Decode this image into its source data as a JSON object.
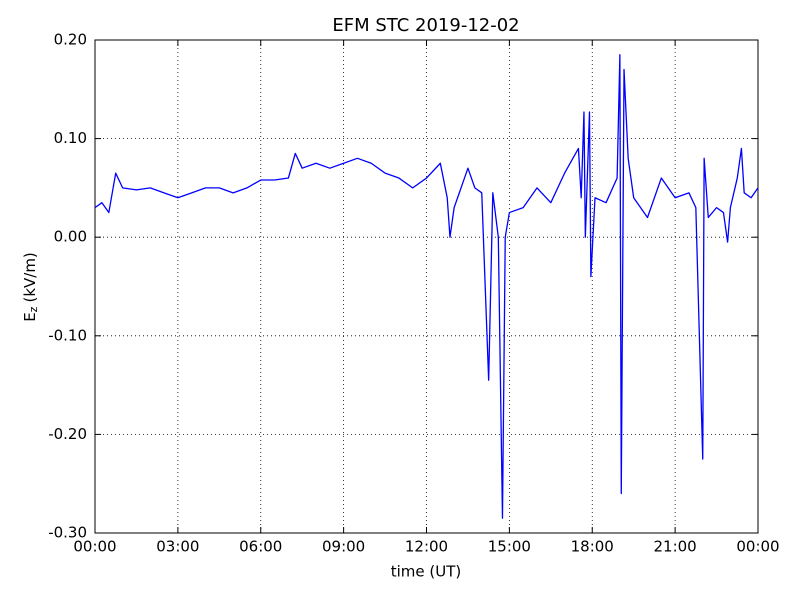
{
  "chart_data": {
    "type": "line",
    "title": "EFM STC    2019-12-02",
    "xlabel": "time (UT)",
    "ylabel": {
      "main": "E",
      "sub": "z",
      "unit": "(kV/m)"
    },
    "color": "#0000ff",
    "grid": true,
    "x": [
      0,
      0.25,
      0.5,
      0.75,
      1,
      1.5,
      2,
      2.5,
      3,
      3.5,
      4,
      4.5,
      5,
      5.5,
      6,
      6.5,
      7,
      7.25,
      7.5,
      8,
      8.5,
      9,
      9.5,
      10,
      10.5,
      11,
      11.5,
      12,
      12.5,
      12.75,
      12.85,
      13,
      13.5,
      13.75,
      14,
      14.25,
      14.4,
      14.6,
      14.75,
      14.85,
      15,
      15.5,
      16,
      16.5,
      17,
      17.5,
      17.6,
      17.7,
      17.75,
      17.9,
      17.95,
      18.1,
      18.5,
      18.9,
      19,
      19.05,
      19.15,
      19.3,
      19.5,
      20,
      20.5,
      21,
      21.5,
      21.75,
      22,
      22.05,
      22.2,
      22.5,
      22.75,
      22.9,
      23,
      23.25,
      23.4,
      23.5,
      23.75,
      24
    ],
    "values": [
      0.03,
      0.035,
      0.025,
      0.065,
      0.05,
      0.048,
      0.05,
      0.045,
      0.04,
      0.045,
      0.05,
      0.05,
      0.045,
      0.05,
      0.058,
      0.058,
      0.06,
      0.085,
      0.07,
      0.075,
      0.07,
      0.075,
      0.08,
      0.075,
      0.065,
      0.06,
      0.05,
      0.06,
      0.075,
      0.04,
      0.0,
      0.03,
      0.07,
      0.05,
      0.045,
      -0.145,
      0.045,
      0.0,
      -0.285,
      0.0,
      0.025,
      0.03,
      0.05,
      0.035,
      0.065,
      0.09,
      0.04,
      0.127,
      0.0,
      0.127,
      -0.04,
      0.04,
      0.035,
      0.06,
      0.185,
      -0.26,
      0.17,
      0.08,
      0.04,
      0.02,
      0.06,
      0.04,
      0.045,
      0.03,
      -0.225,
      0.08,
      0.02,
      0.03,
      0.025,
      -0.005,
      0.03,
      0.06,
      0.09,
      0.045,
      0.04,
      0.05
    ],
    "xlim": [
      0,
      24
    ],
    "xticks": [
      {
        "value": 0,
        "label": "00:00"
      },
      {
        "value": 3,
        "label": "03:00"
      },
      {
        "value": 6,
        "label": "06:00"
      },
      {
        "value": 9,
        "label": "09:00"
      },
      {
        "value": 12,
        "label": "12:00"
      },
      {
        "value": 15,
        "label": "15:00"
      },
      {
        "value": 18,
        "label": "18:00"
      },
      {
        "value": 21,
        "label": "21:00"
      },
      {
        "value": 24,
        "label": "00:00"
      }
    ],
    "ylim": [
      -0.3,
      0.2
    ],
    "yticks": [
      {
        "value": 0.2,
        "label": "0.20"
      },
      {
        "value": 0.1,
        "label": "0.10"
      },
      {
        "value": 0,
        "label": "0.00"
      },
      {
        "value": -0.1,
        "label": "-0.10"
      },
      {
        "value": -0.2,
        "label": "-0.20"
      },
      {
        "value": -0.3,
        "label": "-0.30"
      }
    ]
  }
}
